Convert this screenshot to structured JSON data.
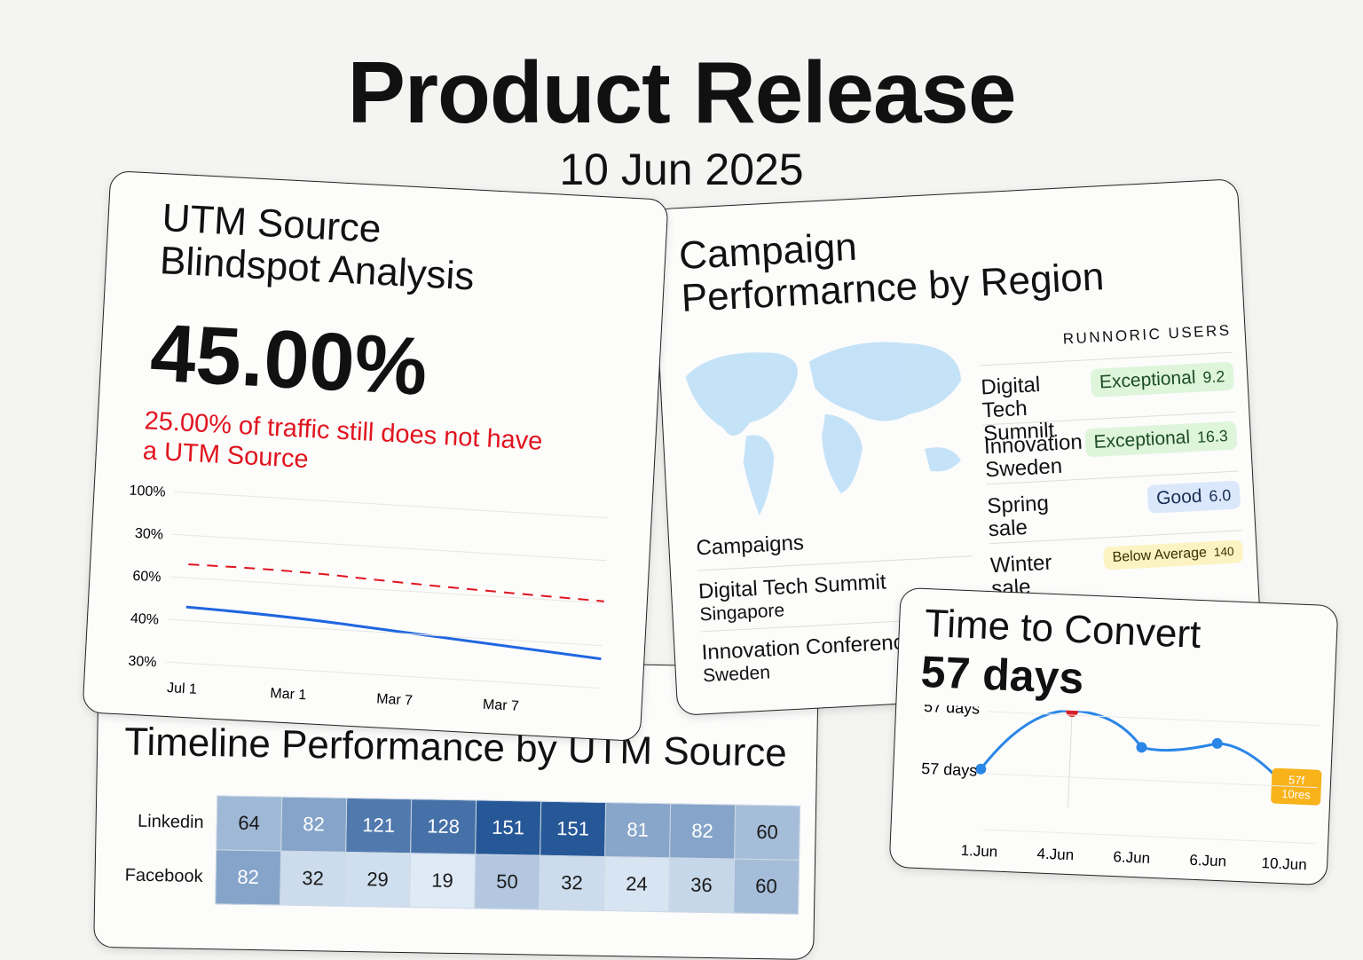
{
  "header": {
    "title": "Product Release",
    "date": "10 Jun 2025"
  },
  "utm": {
    "title_lines": [
      "UTM Source",
      "Blindspot Analysis"
    ],
    "value": "45.00%",
    "note": "25.00% of traffic still does not have a UTM Source",
    "y_labels": [
      "100%",
      "30%",
      "60%",
      "40%",
      "30%"
    ],
    "x_labels": [
      "Jul 1",
      "Mar 1",
      "Mar 7",
      "Mar 7"
    ]
  },
  "campaign": {
    "title_lines": [
      "Campaign",
      "Performarnce by Region"
    ],
    "users_heading": "RUNNORIC USERS",
    "users": [
      {
        "name": "Digital Tech Sumnilt",
        "rating": "Exceptional",
        "score": "9.2"
      },
      {
        "name": "Innovation Sweden",
        "rating": "Exceptional",
        "score": "16.3"
      },
      {
        "name": "Spring sale",
        "rating": "Good",
        "score": "6.0"
      },
      {
        "name": "Winter sale",
        "rating": "Below Average",
        "score": "140"
      }
    ],
    "campaigns_heading": "Campaigns",
    "campaigns": [
      {
        "name": "Digital Tech Summit",
        "location": "Singapore"
      },
      {
        "name": "Innovation Conference",
        "location": "Sweden"
      }
    ]
  },
  "convert": {
    "title": "Time to Convert",
    "value": "57 days",
    "y_labels": [
      "57 days",
      "57 days"
    ],
    "x_labels": [
      "1.Jun",
      "4.Jun",
      "6.Jun",
      "6.Jun",
      "10.Jun"
    ],
    "badge": [
      "57f",
      "10res"
    ]
  },
  "timeline": {
    "title": "Timeline Performance by UTM Source",
    "rows": [
      {
        "label": "Linkedin",
        "values": [
          64,
          82,
          121,
          128,
          151,
          151,
          81,
          82,
          60
        ]
      },
      {
        "label": "Facebook",
        "values": [
          82,
          32,
          29,
          19,
          50,
          32,
          24,
          36,
          60
        ]
      }
    ]
  }
}
